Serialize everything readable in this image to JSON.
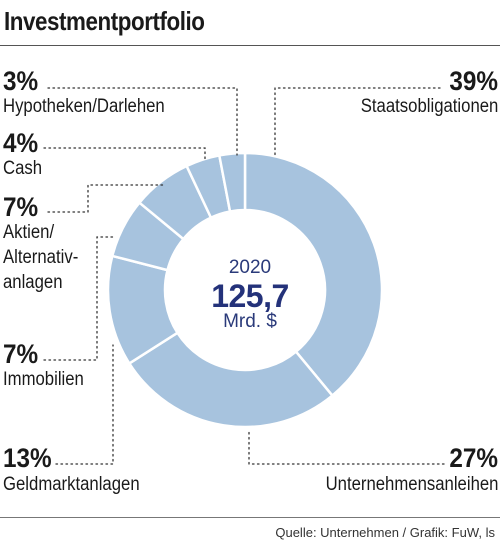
{
  "header": {
    "title": "Investmentportfolio"
  },
  "footer": {
    "source": "Quelle: Unternehmen / Grafik: FuW, ls"
  },
  "center": {
    "year": "2020",
    "value": "125,7",
    "unit": "Mrd. $"
  },
  "labels": {
    "staats": {
      "pct": "39%",
      "name": "Staatsobligationen"
    },
    "unternehmen": {
      "pct": "27%",
      "name": "Unternehmensanleihen"
    },
    "geldmarkt": {
      "pct": "13%",
      "name": "Geldmarktanlagen"
    },
    "immobilien": {
      "pct": "7%",
      "name": "Immobilien"
    },
    "aktien": {
      "pct": "7%",
      "name_line1": "Aktien/",
      "name_line2": "Alternativ-",
      "name_line3": "anlagen"
    },
    "cash": {
      "pct": "4%",
      "name": "Cash"
    },
    "hypotheken": {
      "pct": "3%",
      "name": "Hypotheken/Darlehen"
    }
  },
  "colors": {
    "slice": "#a7c3de",
    "separator": "#ffffff",
    "center_text": "#24327a",
    "leader": "#333333"
  },
  "chart_data": {
    "type": "pie",
    "variant": "donut",
    "title": "Investmentportfolio",
    "total_label": "2020 125,7 Mrd. $",
    "categories": [
      "Staatsobligationen",
      "Unternehmensanleihen",
      "Geldmarktanlagen",
      "Immobilien",
      "Aktien/Alternativanlagen",
      "Cash",
      "Hypotheken/Darlehen"
    ],
    "values": [
      39,
      27,
      13,
      7,
      7,
      4,
      3
    ],
    "unit": "%"
  }
}
